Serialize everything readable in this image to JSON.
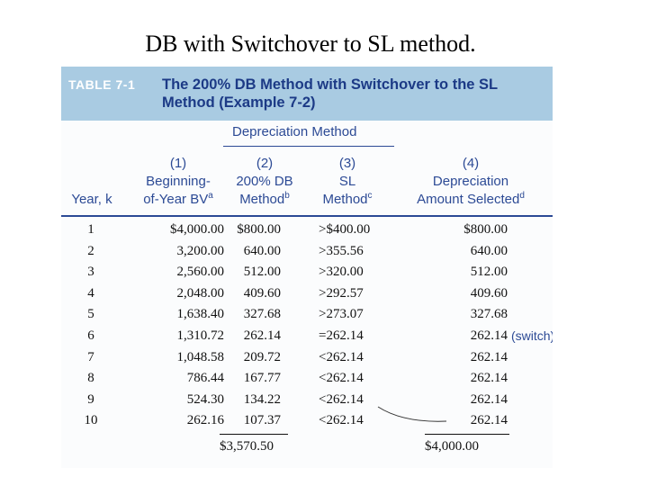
{
  "slide_title": "DB with Switchover to SL method.",
  "table": {
    "label": "TABLE 7-1",
    "title_line1": "The 200% DB Method with Switchover to the SL",
    "title_line2": "Method (Example 7-2)",
    "group_header": "Depreciation Method",
    "columns": {
      "year": "Year, k",
      "col1_num": "(1)",
      "col1_l1": "Beginning-",
      "col1_l2": "of-Year BV",
      "col1_sup": "a",
      "col2_num": "(2)",
      "col2_l1": "200% DB",
      "col2_l2": "Method",
      "col2_sup": "b",
      "col3_num": "(3)",
      "col3_l1": "SL",
      "col3_l2": "Method",
      "col3_sup": "c",
      "col4_num": "(4)",
      "col4_l1": "Depreciation",
      "col4_l2": "Amount Selected",
      "col4_sup": "d"
    },
    "rows": [
      {
        "year": "1",
        "bv": "$4,000.00",
        "db": "$800.00",
        "sl": ">$400.00",
        "sel": "$800.00"
      },
      {
        "year": "2",
        "bv": "3,200.00",
        "db": "640.00",
        "sl": ">355.56",
        "sel": "640.00"
      },
      {
        "year": "3",
        "bv": "2,560.00",
        "db": "512.00",
        "sl": ">320.00",
        "sel": "512.00"
      },
      {
        "year": "4",
        "bv": "2,048.00",
        "db": "409.60",
        "sl": ">292.57",
        "sel": "409.60"
      },
      {
        "year": "5",
        "bv": "1,638.40",
        "db": "327.68",
        "sl": ">273.07",
        "sel": "327.68"
      },
      {
        "year": "6",
        "bv": "1,310.72",
        "db": "262.14",
        "sl": "=262.14",
        "sel": "262.14"
      },
      {
        "year": "7",
        "bv": "1,048.58",
        "db": "209.72",
        "sl": "<262.14",
        "sel": "262.14"
      },
      {
        "year": "8",
        "bv": "786.44",
        "db": "167.77",
        "sl": "<262.14",
        "sel": "262.14"
      },
      {
        "year": "9",
        "bv": "524.30",
        "db": "134.22",
        "sl": "<262.14",
        "sel": "262.14"
      },
      {
        "year": "10",
        "bv": "262.16",
        "db": "107.37",
        "sl": "<262.14",
        "sel": "262.14"
      }
    ],
    "switch_note": "(switch)",
    "total_db": "$3,570.50",
    "total_selected": "$4,000.00"
  }
}
